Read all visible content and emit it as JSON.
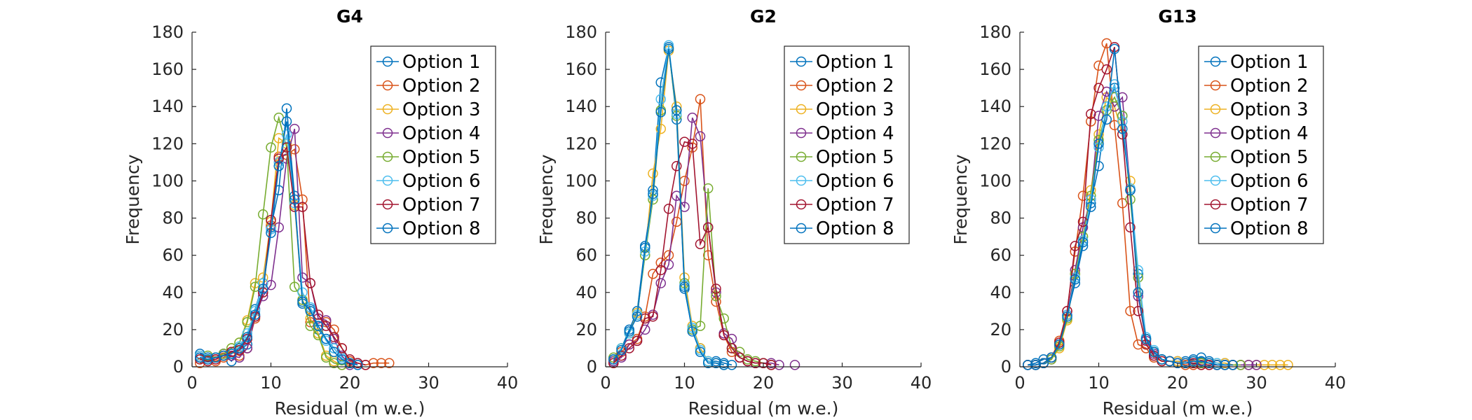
{
  "colors": {
    "option_1": "#0072BD",
    "option_2": "#D95319",
    "option_3": "#EDB120",
    "option_4": "#7E2F8E",
    "option_5": "#77AC30",
    "option_6": "#4DBEEE",
    "option_7": "#A2142F",
    "option_8": "#0072BD",
    "axis": "#262626"
  },
  "chart_data": [
    {
      "type": "line",
      "title": "G4",
      "xlabel": "Residual (m w.e.)",
      "ylabel": "Frequency",
      "xlim": [
        0,
        40
      ],
      "ylim": [
        0,
        180
      ],
      "xticks": [
        0,
        10,
        20,
        30,
        40
      ],
      "yticks": [
        0,
        20,
        40,
        60,
        80,
        100,
        120,
        140,
        160,
        180
      ],
      "legend_position": "top-right",
      "grid": false,
      "x": [
        1,
        2,
        3,
        4,
        5,
        6,
        7,
        8,
        9,
        10,
        11,
        12,
        13,
        14,
        15,
        16,
        17,
        18,
        19,
        20,
        21,
        22,
        23,
        24,
        25
      ],
      "series": [
        {
          "name": "Option 1",
          "values": [
            7,
            5,
            5,
            7,
            3,
            9,
            12,
            31,
            45,
            75,
            95,
            139,
            92,
            34,
            31,
            20,
            15,
            10,
            5,
            2,
            2,
            null,
            null,
            null,
            null
          ]
        },
        {
          "name": "Option 2",
          "values": [
            2,
            4,
            3,
            5,
            8,
            6,
            10,
            26,
            40,
            76,
            113,
            114,
            117,
            90,
            24,
            26,
            24,
            20,
            10,
            3,
            2,
            1,
            2,
            2,
            2
          ]
        },
        {
          "name": "Option 3",
          "values": [
            4,
            3,
            5,
            6,
            10,
            13,
            25,
            45,
            48,
            78,
            123,
            120,
            87,
            36,
            26,
            18,
            6,
            3,
            1,
            null,
            null,
            null,
            null,
            null,
            null
          ]
        },
        {
          "name": "Option 4",
          "values": [
            5,
            4,
            4,
            7,
            6,
            5,
            10,
            27,
            38,
            44,
            75,
            112,
            128,
            48,
            45,
            26,
            25,
            15,
            6,
            1,
            2,
            null,
            null,
            null,
            null
          ]
        },
        {
          "name": "Option 5",
          "values": [
            6,
            6,
            5,
            7,
            10,
            13,
            24,
            43,
            82,
            118,
            134,
            118,
            43,
            36,
            22,
            17,
            5,
            2,
            1,
            2,
            null,
            null,
            null,
            null,
            null
          ]
        },
        {
          "name": "Option 6",
          "values": [
            6,
            4,
            5,
            6,
            7,
            11,
            18,
            30,
            45,
            74,
            110,
            125,
            88,
            40,
            32,
            22,
            14,
            10,
            5,
            2,
            1,
            null,
            null,
            null,
            null
          ]
        },
        {
          "name": "Option 7",
          "values": [
            4,
            3,
            4,
            6,
            8,
            9,
            15,
            27,
            40,
            79,
            112,
            118,
            86,
            86,
            45,
            28,
            22,
            16,
            10,
            4,
            2,
            1,
            null,
            null,
            null
          ]
        },
        {
          "name": "Option 8",
          "values": [
            5,
            4,
            5,
            6,
            7,
            10,
            16,
            28,
            42,
            72,
            108,
            132,
            90,
            35,
            30,
            22,
            15,
            8,
            4,
            2,
            1,
            null,
            null,
            null,
            null
          ]
        }
      ]
    },
    {
      "type": "line",
      "title": "G2",
      "xlabel": "Residual (m w.e.)",
      "ylabel": "Frequency",
      "xlim": [
        0,
        40
      ],
      "ylim": [
        0,
        180
      ],
      "xticks": [
        0,
        10,
        20,
        30,
        40
      ],
      "yticks": [
        0,
        20,
        40,
        60,
        80,
        100,
        120,
        140,
        160,
        180
      ],
      "legend_position": "top-right",
      "grid": false,
      "x": [
        1,
        2,
        3,
        4,
        5,
        6,
        7,
        8,
        9,
        10,
        11,
        12,
        13,
        14,
        15,
        16,
        17,
        18,
        19,
        20,
        21,
        22,
        23,
        24
      ],
      "series": [
        {
          "name": "Option 1",
          "values": [
            3,
            10,
            20,
            30,
            65,
            95,
            153,
            172,
            133,
            42,
            20,
            10,
            3,
            3,
            2,
            1,
            null,
            null,
            null,
            null,
            null,
            null,
            null,
            null
          ]
        },
        {
          "name": "Option 2",
          "values": [
            2,
            8,
            12,
            15,
            27,
            50,
            56,
            60,
            78,
            100,
            118,
            144,
            60,
            35,
            17,
            8,
            5,
            3,
            2,
            2,
            1,
            null,
            null,
            null
          ]
        },
        {
          "name": "Option 3",
          "values": [
            4,
            10,
            18,
            29,
            60,
            104,
            128,
            170,
            140,
            48,
            22,
            10,
            3,
            2,
            1,
            null,
            null,
            null,
            null,
            null,
            null,
            null,
            null,
            null
          ]
        },
        {
          "name": "Option 4",
          "values": [
            3,
            5,
            12,
            14,
            20,
            28,
            45,
            55,
            92,
            86,
            134,
            124,
            75,
            40,
            18,
            15,
            5,
            3,
            2,
            2,
            2,
            1,
            null,
            1
          ]
        },
        {
          "name": "Option 5",
          "values": [
            5,
            10,
            18,
            28,
            60,
            90,
            138,
            171,
            135,
            45,
            20,
            22,
            96,
            38,
            26,
            10,
            8,
            4,
            3,
            2,
            1,
            null,
            null,
            null
          ]
        },
        {
          "name": "Option 6",
          "values": [
            4,
            10,
            18,
            28,
            62,
            92,
            144,
            173,
            136,
            44,
            21,
            9,
            3,
            2,
            1,
            null,
            null,
            null,
            null,
            null,
            null,
            null,
            null,
            null
          ]
        },
        {
          "name": "Option 7",
          "values": [
            2,
            6,
            10,
            14,
            26,
            27,
            52,
            85,
            108,
            121,
            120,
            66,
            75,
            42,
            17,
            10,
            5,
            3,
            2,
            2,
            1,
            null,
            null,
            null
          ]
        },
        {
          "name": "Option 8",
          "values": [
            4,
            9,
            19,
            27,
            64,
            93,
            137,
            171,
            138,
            43,
            19,
            8,
            2,
            2,
            1,
            null,
            null,
            null,
            null,
            null,
            null,
            null,
            null,
            null
          ]
        }
      ]
    },
    {
      "type": "line",
      "title": "G13",
      "xlabel": "Residual (m w.e.)",
      "ylabel": "Frequency",
      "xlim": [
        0,
        40
      ],
      "ylim": [
        0,
        180
      ],
      "xticks": [
        0,
        10,
        20,
        30,
        40
      ],
      "yticks": [
        0,
        20,
        40,
        60,
        80,
        100,
        120,
        140,
        160,
        180
      ],
      "legend_position": "top-right",
      "grid": false,
      "x": [
        1,
        2,
        3,
        4,
        5,
        6,
        7,
        8,
        9,
        10,
        11,
        12,
        13,
        14,
        15,
        16,
        17,
        18,
        19,
        20,
        21,
        22,
        23,
        24,
        25,
        26,
        27,
        28,
        29,
        30,
        31,
        32,
        33,
        34
      ],
      "series": [
        {
          "name": "Option 1",
          "values": [
            1,
            2,
            4,
            5,
            12,
            28,
            45,
            65,
            88,
            108,
            140,
            150,
            135,
            95,
            50,
            15,
            8,
            4,
            3,
            3,
            3,
            4,
            5,
            3,
            2,
            2,
            1,
            null,
            null,
            null,
            null,
            null,
            null,
            null
          ]
        },
        {
          "name": "Option 2",
          "values": [
            1,
            1,
            2,
            5,
            14,
            30,
            62,
            92,
            132,
            162,
            174,
            130,
            88,
            30,
            12,
            10,
            5,
            3,
            3,
            2,
            1,
            1,
            1,
            1,
            1,
            null,
            null,
            null,
            null,
            null,
            null,
            null,
            null,
            null
          ]
        },
        {
          "name": "Option 3",
          "values": [
            null,
            1,
            2,
            4,
            10,
            25,
            50,
            70,
            95,
            125,
            145,
            140,
            125,
            100,
            40,
            12,
            8,
            4,
            3,
            3,
            2,
            3,
            2,
            2,
            2,
            2,
            1,
            1,
            1,
            1,
            1,
            1,
            1,
            1
          ]
        },
        {
          "name": "Option 4",
          "values": [
            1,
            1,
            2,
            4,
            12,
            28,
            52,
            75,
            90,
            135,
            148,
            140,
            145,
            95,
            38,
            14,
            7,
            4,
            3,
            2,
            2,
            2,
            2,
            2,
            1,
            1,
            1,
            1,
            1,
            1,
            null,
            null,
            null,
            null
          ]
        },
        {
          "name": "Option 5",
          "values": [
            1,
            1,
            2,
            4,
            11,
            26,
            50,
            70,
            92,
            122,
            138,
            145,
            135,
            90,
            48,
            15,
            8,
            4,
            3,
            2,
            2,
            3,
            2,
            2,
            1,
            1,
            1,
            1,
            null,
            null,
            null,
            null,
            null,
            null
          ]
        },
        {
          "name": "Option 6",
          "values": [
            1,
            1,
            2,
            5,
            12,
            28,
            48,
            68,
            90,
            118,
            140,
            152,
            132,
            96,
            52,
            16,
            9,
            4,
            3,
            2,
            2,
            3,
            3,
            2,
            2,
            1,
            1,
            null,
            null,
            null,
            null,
            null,
            null,
            null
          ]
        },
        {
          "name": "Option 7",
          "values": [
            1,
            1,
            2,
            5,
            13,
            30,
            65,
            78,
            136,
            150,
            160,
            172,
            125,
            75,
            30,
            12,
            6,
            3,
            3,
            2,
            2,
            2,
            1,
            1,
            1,
            1,
            1,
            null,
            null,
            null,
            null,
            null,
            null,
            null
          ]
        },
        {
          "name": "Option 8",
          "values": [
            1,
            1,
            2,
            5,
            12,
            27,
            47,
            67,
            86,
            120,
            133,
            171,
            128,
            95,
            40,
            15,
            8,
            4,
            3,
            2,
            2,
            3,
            3,
            2,
            1,
            1,
            1,
            null,
            null,
            null,
            null,
            null,
            null,
            null
          ]
        }
      ]
    }
  ]
}
